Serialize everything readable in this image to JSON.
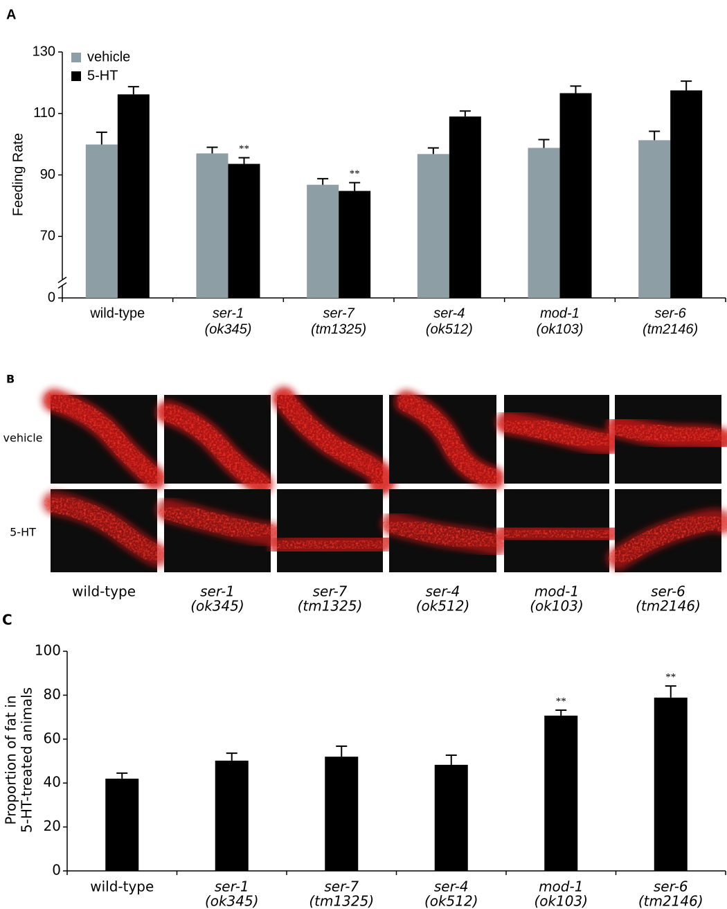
{
  "chart_data": [
    {
      "type": "bar",
      "panel_label": "A",
      "ylabel": [
        "Feeding Rate"
      ],
      "categories": [
        [
          "wild-type"
        ],
        [
          "ser-1",
          "(ok345)"
        ],
        [
          "ser-7",
          "(tm1325)"
        ],
        [
          "ser-4",
          "(ok512)"
        ],
        [
          "mod-1",
          "(ok103)"
        ],
        [
          "ser-6",
          "(tm2146)"
        ]
      ],
      "series": [
        {
          "name": "vehicle",
          "color": "#8d9ea4",
          "values": [
            99.9,
            97,
            86.8,
            96.8,
            98.8,
            101.3
          ],
          "errors": [
            4,
            2,
            2,
            2,
            2.7,
            2.9
          ],
          "significance": [
            null,
            null,
            null,
            null,
            null,
            null
          ]
        },
        {
          "name": "5-HT",
          "color": "#000000",
          "values": [
            116.2,
            93.6,
            84.8,
            109,
            116.6,
            117.5
          ],
          "errors": [
            2.5,
            2,
            2.7,
            1.8,
            2.3,
            3
          ],
          "significance": [
            null,
            "**",
            "**",
            null,
            null,
            null
          ]
        }
      ],
      "ylim": [
        0,
        130
      ],
      "yticks": [
        0,
        70,
        90,
        110,
        130
      ],
      "axis_break": true,
      "legend": "top-left",
      "grid": false
    },
    {
      "type": "bar",
      "panel_label": "C",
      "ylabel": [
        "Proportion of fat in",
        "5-HT-treated animals"
      ],
      "categories": [
        [
          "wild-type"
        ],
        [
          "ser-1",
          "(ok345)"
        ],
        [
          "ser-7",
          "(tm1325)"
        ],
        [
          "ser-4",
          "(ok512)"
        ],
        [
          "mod-1",
          "(ok103)"
        ],
        [
          "ser-6",
          "(tm2146)"
        ]
      ],
      "values": [
        42,
        50.2,
        52,
        48.3,
        70.7,
        78.9
      ],
      "errors": [
        2.5,
        3.4,
        4.8,
        4.4,
        2.5,
        5.3
      ],
      "significance": [
        null,
        null,
        null,
        null,
        "**",
        "**"
      ],
      "color": "#000000",
      "ylim": [
        0,
        100
      ],
      "yticks": [
        0,
        20,
        40,
        60,
        80,
        100
      ],
      "axis_break": false,
      "grid": false
    }
  ],
  "panel_b": {
    "panel_label": "B",
    "rows": [
      "vehicle",
      "5-HT"
    ],
    "columns": [
      [
        "wild-type"
      ],
      [
        "ser-1",
        "(ok345)"
      ],
      [
        "ser-7",
        "(tm1325)"
      ],
      [
        "ser-4",
        "(ok512)"
      ],
      [
        "mod-1",
        "(ok103)"
      ],
      [
        "ser-6",
        "(tm2146)"
      ]
    ]
  }
}
